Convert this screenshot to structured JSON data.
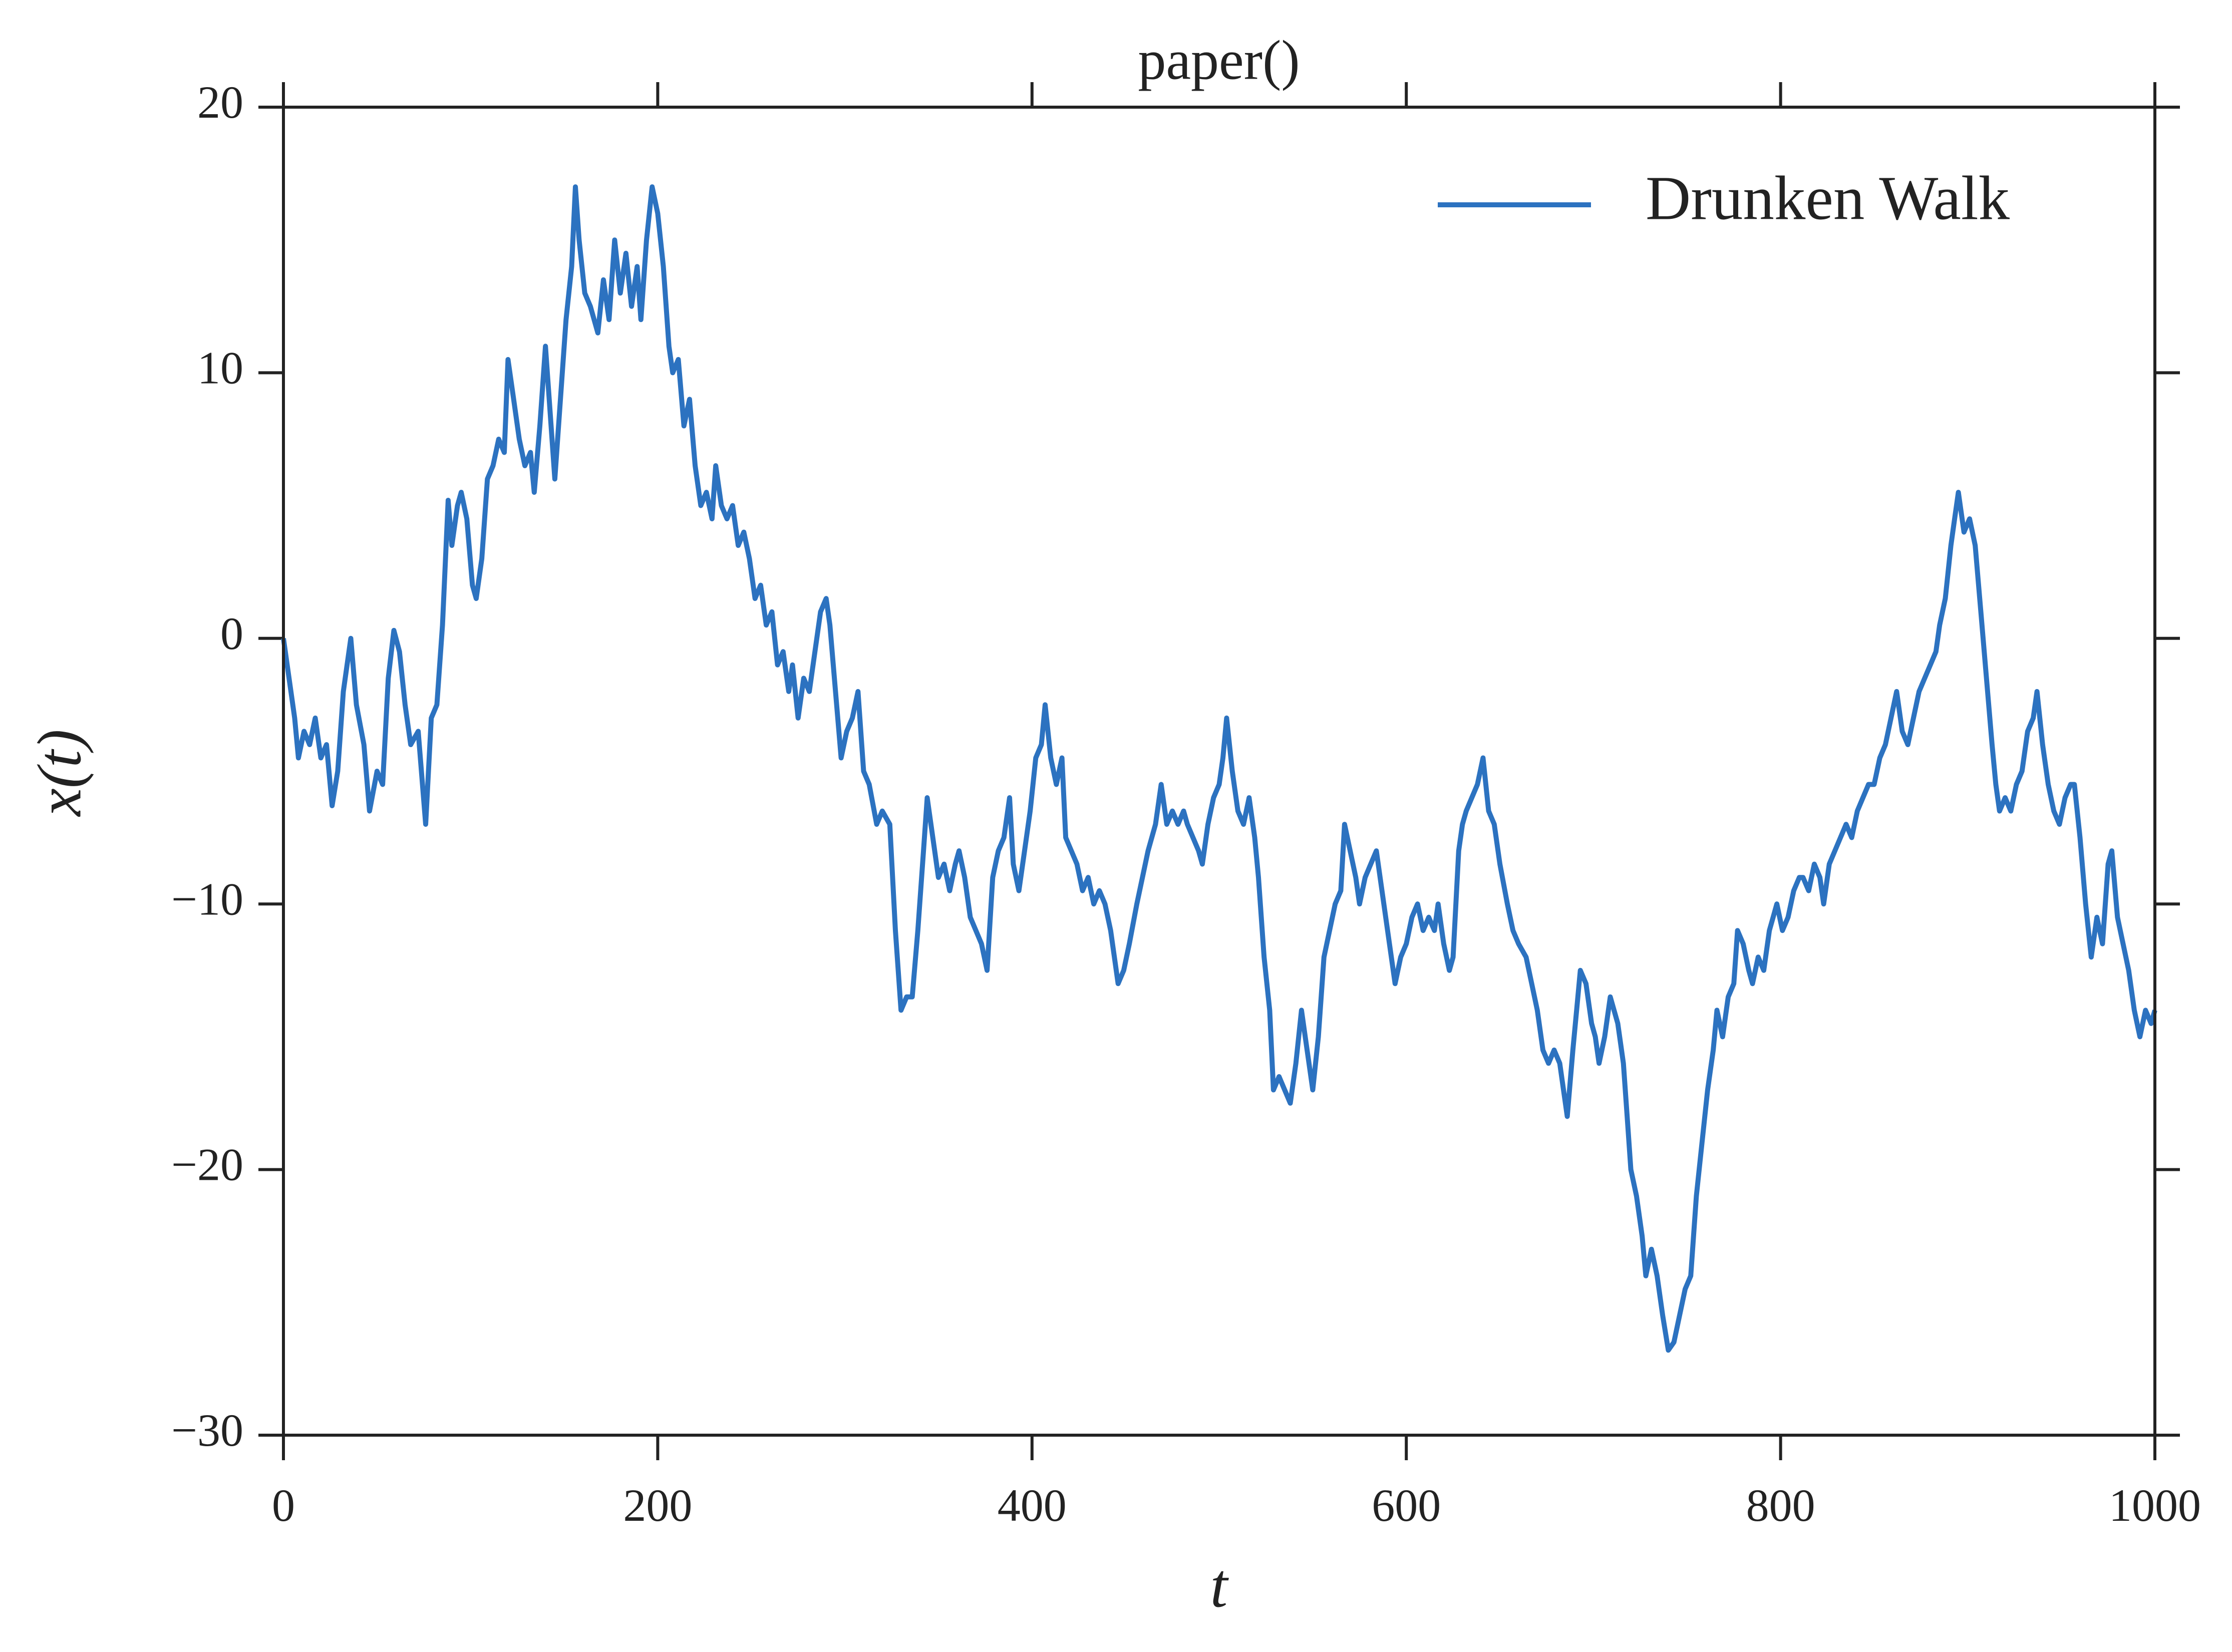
{
  "chart_data": {
    "type": "line",
    "title": "paper()",
    "xlabel": "t",
    "ylabel": "x(t)",
    "x": [
      0,
      3,
      6,
      8,
      11,
      14,
      17,
      20,
      23,
      26,
      29,
      32,
      36,
      39,
      43,
      46,
      50,
      53,
      56,
      59,
      62,
      65,
      68,
      72,
      76,
      79,
      82,
      85,
      88,
      90,
      93,
      95,
      98,
      101,
      103,
      106,
      109,
      112,
      115,
      118,
      120,
      123,
      126,
      129,
      132,
      134,
      137,
      140,
      142,
      145,
      148,
      151,
      154,
      156,
      158,
      161,
      164,
      168,
      171,
      174,
      177,
      180,
      183,
      186,
      189,
      191,
      194,
      197,
      200,
      203,
      206,
      208,
      211,
      214,
      217,
      220,
      223,
      226,
      229,
      231,
      234,
      237,
      240,
      243,
      246,
      249,
      252,
      255,
      258,
      261,
      264,
      267,
      270,
      272,
      275,
      278,
      281,
      284,
      287,
      290,
      292,
      295,
      298,
      301,
      304,
      307,
      310,
      313,
      317,
      320,
      324,
      327,
      330,
      333,
      336,
      339,
      342,
      344,
      347,
      350,
      353,
      356,
      359,
      361,
      364,
      367,
      370,
      373,
      376,
      379,
      382,
      385,
      388,
      390,
      393,
      396,
      399,
      402,
      405,
      407,
      410,
      413,
      416,
      418,
      421,
      424,
      427,
      430,
      433,
      436,
      439,
      442,
      446,
      449,
      452,
      456,
      459,
      462,
      466,
      469,
      472,
      475,
      478,
      481,
      483,
      486,
      489,
      491,
      494,
      497,
      500,
      502,
      504,
      507,
      510,
      513,
      516,
      519,
      521,
      524,
      527,
      529,
      532,
      535,
      538,
      541,
      544,
      547,
      550,
      553,
      556,
      559,
      562,
      565,
      567,
      570,
      573,
      575,
      578,
      581,
      584,
      587,
      590,
      594,
      597,
      600,
      603,
      606,
      609,
      612,
      615,
      617,
      620,
      623,
      625,
      628,
      630,
      632,
      635,
      638,
      641,
      644,
      647,
      650,
      654,
      657,
      660,
      664,
      667,
      670,
      673,
      676,
      679,
      682,
      686,
      689,
      691,
      693,
      696,
      699,
      701,
      703,
      706,
      709,
      713,
      716,
      718,
      720,
      723,
      726,
      728,
      731,
      734,
      737,
      740,
      743,
      746,
      749,
      752,
      755,
      758,
      761,
      764,
      766,
      769,
      772,
      775,
      777,
      780,
      783,
      785,
      788,
      791,
      794,
      796,
      798,
      801,
      804,
      807,
      810,
      812,
      815,
      818,
      821,
      823,
      826,
      829,
      832,
      835,
      838,
      841,
      844,
      847,
      850,
      853,
      856,
      859,
      862,
      865,
      868,
      871,
      874,
      877,
      880,
      883,
      885,
      888,
      891,
      893,
      895,
      898,
      901,
      904,
      907,
      910,
      913,
      915,
      917,
      920,
      923,
      926,
      929,
      932,
      935,
      937,
      940,
      943,
      946,
      949,
      952,
      955,
      957,
      960,
      963,
      966,
      969,
      972,
      975,
      977,
      980,
      983,
      986,
      989,
      992,
      995,
      998,
      1000
    ],
    "series": [
      {
        "name": "Drunken Walk",
        "color": "#2c72c0",
        "values": [
          0,
          -1.5,
          -3,
          -4.5,
          -3.5,
          -4,
          -3,
          -4.5,
          -4,
          -6.3,
          -5,
          -2,
          0,
          -2.5,
          -4,
          -6.5,
          -5,
          -5.5,
          -1.5,
          0.3,
          -0.5,
          -2.5,
          -4,
          -3.5,
          -7,
          -3,
          -2.5,
          0.5,
          5.2,
          3.5,
          5,
          5.5,
          4.5,
          2,
          1.5,
          3,
          6,
          6.5,
          7.5,
          7,
          10.5,
          9,
          7.5,
          6.5,
          7,
          5.5,
          8,
          11,
          9,
          6,
          9,
          12,
          14,
          17,
          15,
          13,
          12.5,
          11.5,
          13.5,
          12,
          15,
          13,
          14.5,
          12.5,
          14,
          12,
          15,
          17,
          16,
          14,
          11,
          10,
          10.5,
          8,
          9,
          6.5,
          5,
          5.5,
          4.5,
          6.5,
          5,
          4.5,
          5,
          3.5,
          4,
          3,
          1.5,
          2,
          0.5,
          1,
          -1,
          -0.5,
          -2,
          -1,
          -3,
          -1.5,
          -2,
          -0.5,
          1,
          1.5,
          0.5,
          -2,
          -4.5,
          -3.5,
          -3,
          -2,
          -5,
          -5.5,
          -7,
          -6.5,
          -7,
          -11,
          -14,
          -13.5,
          -13.5,
          -11,
          -8,
          -6,
          -7.5,
          -9,
          -8.5,
          -9.5,
          -8.5,
          -8,
          -9,
          -10.5,
          -11,
          -11.5,
          -12.5,
          -9,
          -8,
          -7.5,
          -6,
          -8.5,
          -9.5,
          -8,
          -6.5,
          -4.5,
          -4,
          -2.5,
          -4.5,
          -5.5,
          -4.5,
          -7.5,
          -8,
          -8.5,
          -9.5,
          -9,
          -10,
          -9.5,
          -10,
          -11,
          -13,
          -12.5,
          -11.5,
          -10,
          -9,
          -8,
          -7,
          -5.5,
          -7,
          -6.5,
          -7,
          -6.5,
          -7,
          -7.5,
          -8,
          -8.5,
          -7,
          -6,
          -5.5,
          -4.5,
          -3,
          -5,
          -6.5,
          -7,
          -6,
          -7.5,
          -9,
          -12,
          -14,
          -17,
          -16.5,
          -17,
          -17.5,
          -16,
          -14,
          -15.5,
          -17,
          -15,
          -12,
          -11,
          -10,
          -9.5,
          -7,
          -8,
          -9,
          -10,
          -9,
          -8.5,
          -8,
          -9.5,
          -11,
          -13,
          -12,
          -11.5,
          -10.5,
          -10,
          -11,
          -10.5,
          -11,
          -10,
          -11.5,
          -12.5,
          -12,
          -8,
          -7,
          -6.5,
          -6,
          -5.5,
          -4.5,
          -6.5,
          -7,
          -8.5,
          -10,
          -11,
          -11.5,
          -12,
          -13,
          -14,
          -15.5,
          -16,
          -15.5,
          -16,
          -18,
          -15.5,
          -14,
          -12.5,
          -13,
          -14.5,
          -15,
          -16,
          -15,
          -13.5,
          -14.5,
          -16,
          -18,
          -20,
          -21,
          -22.5,
          -24,
          -23,
          -24,
          -25.5,
          -26.8,
          -26.5,
          -25.5,
          -24.5,
          -24,
          -21,
          -19,
          -17,
          -15.5,
          -14,
          -15,
          -13.5,
          -13,
          -11,
          -11.5,
          -12.5,
          -13,
          -12,
          -12.5,
          -11,
          -10.5,
          -10,
          -11,
          -10.5,
          -9.5,
          -9,
          -9,
          -9.5,
          -8.5,
          -9,
          -10,
          -8.5,
          -8,
          -7.5,
          -7,
          -7.5,
          -6.5,
          -6,
          -5.5,
          -5.5,
          -4.5,
          -4,
          -3,
          -2,
          -3.5,
          -4,
          -3,
          -2,
          -1.5,
          -1,
          -0.5,
          0.5,
          1.5,
          3.5,
          4.5,
          5.5,
          4,
          4.5,
          3.5,
          1,
          -1.5,
          -4,
          -5.5,
          -6.5,
          -6,
          -6.5,
          -5.5,
          -5,
          -3.5,
          -3,
          -2,
          -4,
          -5.5,
          -6.5,
          -7,
          -6,
          -5.5,
          -5.5,
          -7.5,
          -10,
          -12,
          -10.5,
          -11.5,
          -8.5,
          -8,
          -10.5,
          -11.5,
          -12.5,
          -14,
          -15,
          -14,
          -14.5,
          -14
        ]
      }
    ],
    "xlim": [
      0,
      1000
    ],
    "xticks": [
      0,
      200,
      400,
      600,
      800,
      1000
    ],
    "ylim": [
      -30,
      20
    ],
    "yticks": [
      {
        "value": -30,
        "label": "−30"
      },
      {
        "value": -20,
        "label": "−20"
      },
      {
        "value": -10,
        "label": "−10"
      },
      0,
      10,
      20
    ],
    "grid": false,
    "legend": "upper right"
  }
}
